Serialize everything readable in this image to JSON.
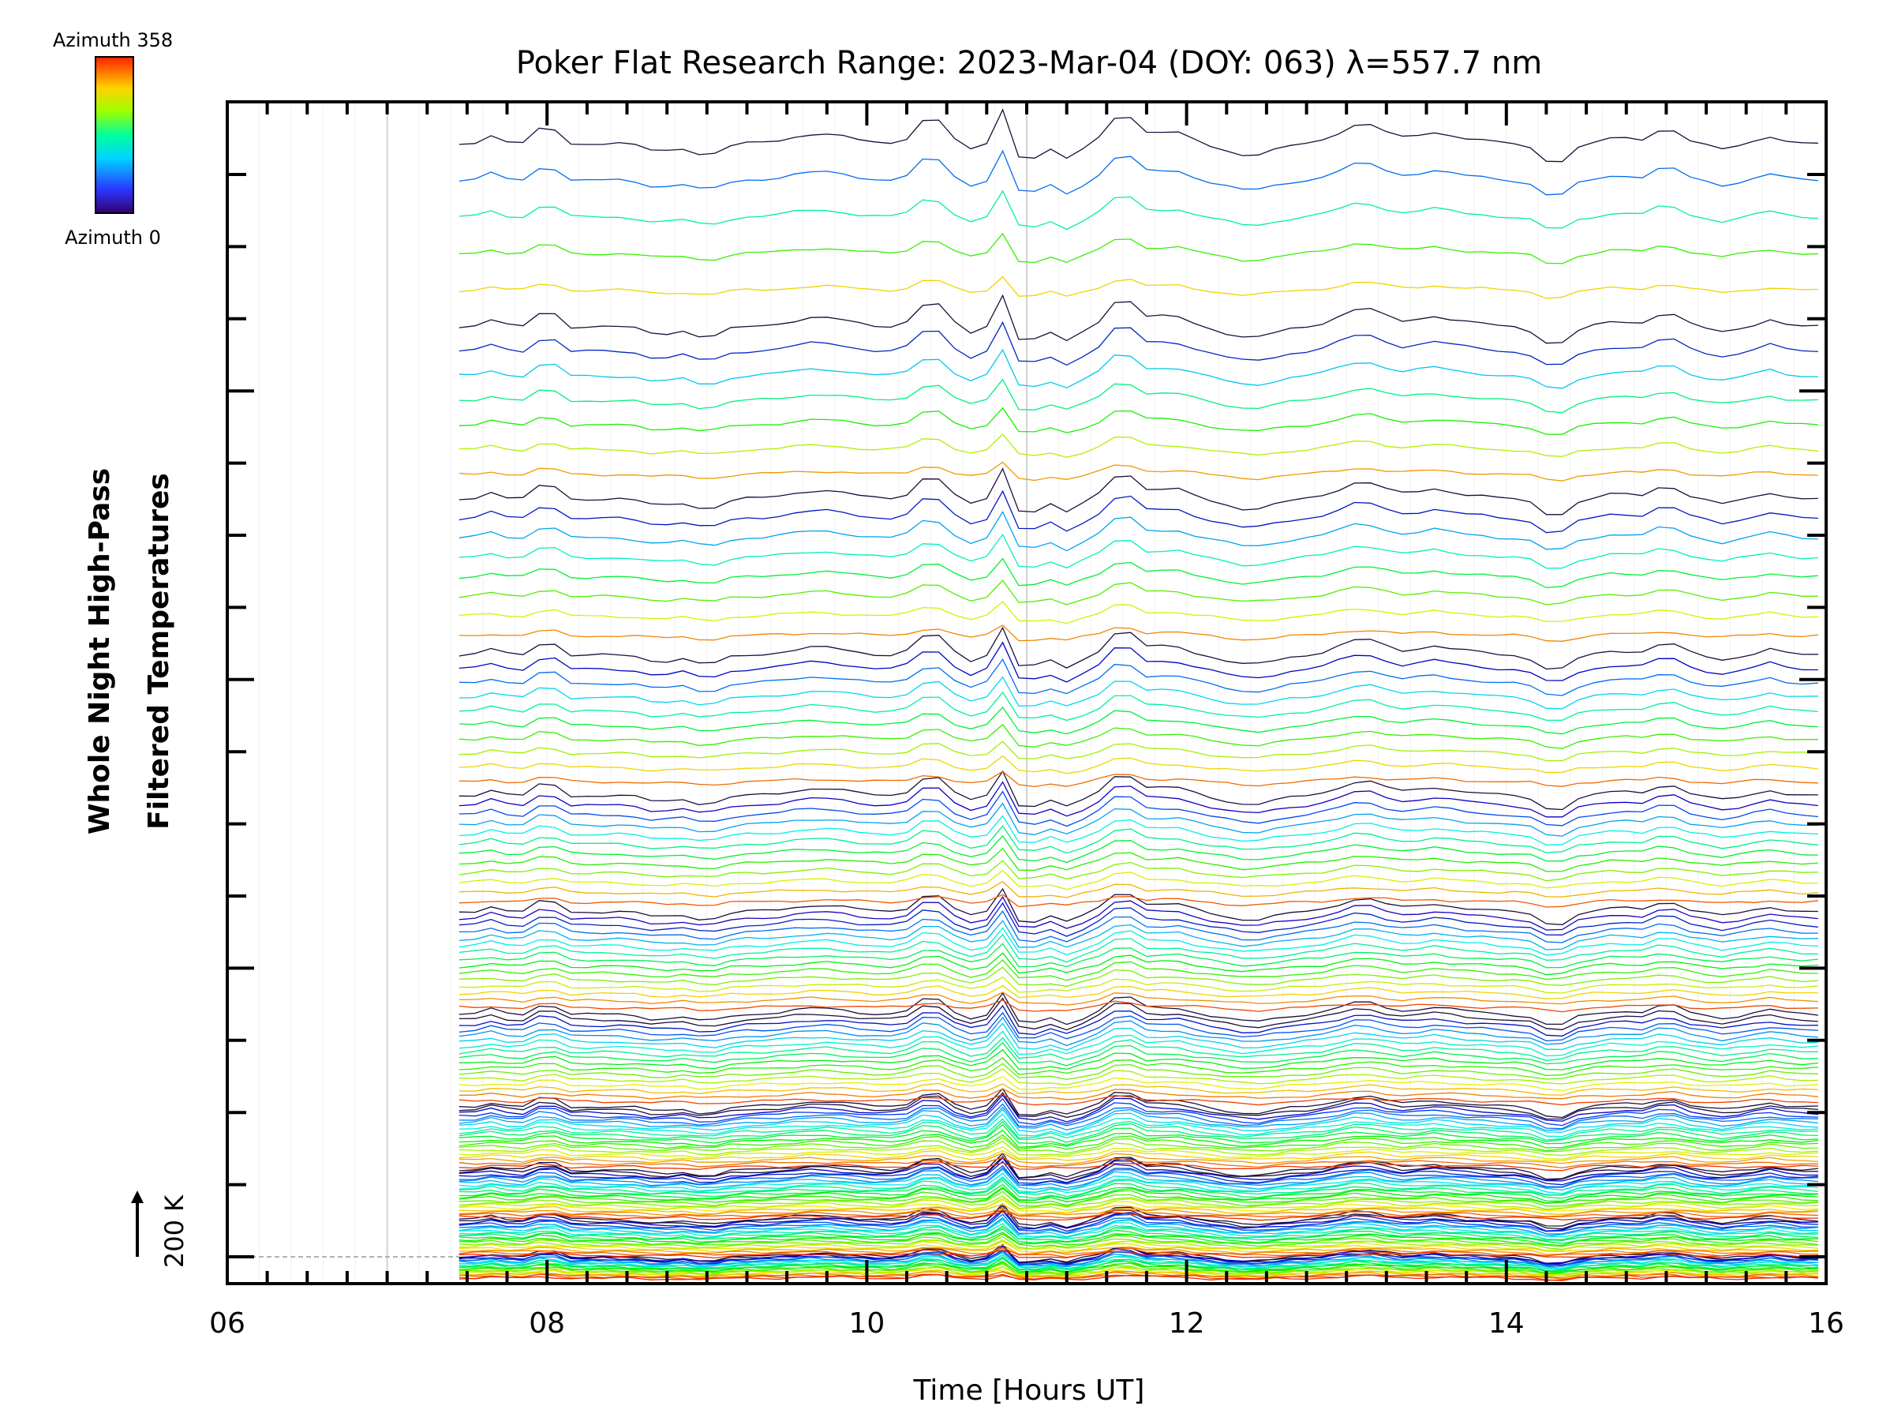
{
  "chart_data": {
    "type": "line",
    "title": "Poker Flat Research Range: 2023-Mar-04 (DOY: 063) λ=557.7 nm",
    "xlabel": "Time [Hours UT]",
    "ylabel": [
      "Whole Night High-Pass",
      "Filtered Temperatures"
    ],
    "xlim": [
      6,
      16
    ],
    "x_ticks": [
      "06",
      "08",
      "10",
      "12",
      "14",
      "16"
    ],
    "colorbar": {
      "top_label": "Azimuth 358",
      "bottom_label": "Azimuth 0",
      "colormap": "rainbow"
    },
    "scale_bar_label": "200 K",
    "start_time": 7.45,
    "bands": 12,
    "lines_per_band_approx": [
      28,
      24,
      22,
      20,
      17,
      15,
      12,
      10,
      8,
      7,
      5,
      3
    ],
    "disturbance_features": [
      {
        "time": 8.0,
        "description": "peak"
      },
      {
        "time": 10.4,
        "description": "peak"
      },
      {
        "time": 10.85,
        "description": "sharp spike"
      },
      {
        "time": 11.6,
        "description": "peak"
      },
      {
        "time": 13.1,
        "description": "peak"
      },
      {
        "time": 14.3,
        "description": "trough"
      },
      {
        "time": 15.0,
        "description": "peak"
      }
    ],
    "grid": "vertical lines every 0.2 h",
    "colors": {
      "frame": "#000000",
      "grid": "#d3d3d3"
    }
  }
}
